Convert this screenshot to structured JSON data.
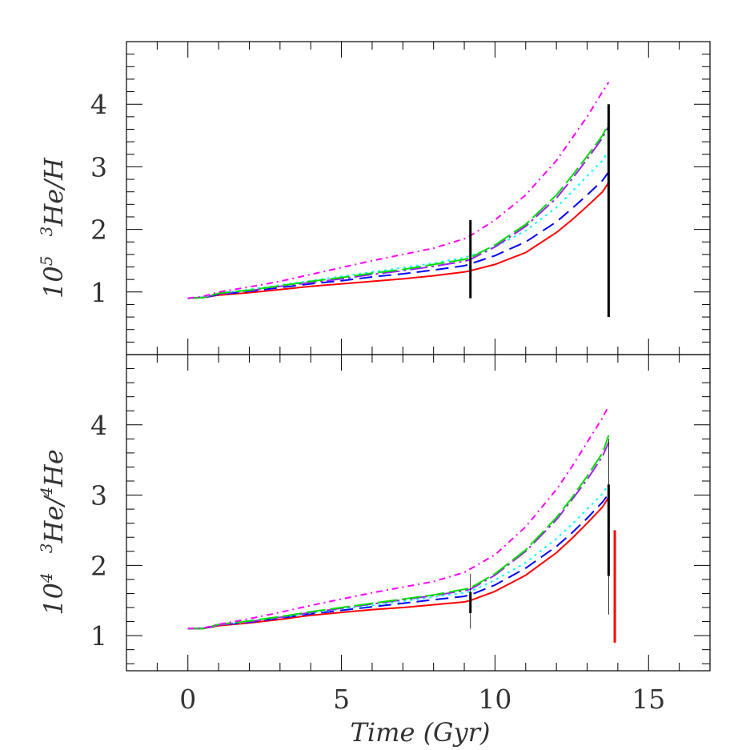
{
  "chart_data": [
    {
      "type": "line",
      "panel": "top",
      "ylabel": "10⁵ ³He/H",
      "ylabel_parts": {
        "base": "10",
        "exp": "5",
        "iso": "3",
        "rest": "He/H"
      },
      "xlim": [
        -2,
        17
      ],
      "ylim": [
        0,
        5
      ],
      "yticks": [
        1,
        2,
        3,
        4
      ],
      "series": [
        {
          "name": "red solid",
          "color": "#ff0000",
          "dash": "",
          "x": [
            0,
            0.5,
            1,
            2,
            3,
            4,
            5,
            6,
            7,
            8,
            9,
            9.2,
            10,
            11,
            12,
            12.5,
            13,
            13.5,
            13.7
          ],
          "y": [
            0.9,
            0.91,
            0.95,
            0.99,
            1.04,
            1.09,
            1.13,
            1.17,
            1.21,
            1.26,
            1.32,
            1.34,
            1.44,
            1.63,
            1.95,
            2.15,
            2.37,
            2.6,
            2.75
          ]
        },
        {
          "name": "blue dashed",
          "color": "#0000ff",
          "dash": "16 8",
          "x": [
            0,
            0.5,
            1,
            2,
            3,
            4,
            5,
            6,
            7,
            8,
            9,
            9.2,
            10,
            11,
            12,
            12.5,
            13,
            13.5,
            13.7
          ],
          "y": [
            0.9,
            0.91,
            0.96,
            1.01,
            1.07,
            1.13,
            1.18,
            1.24,
            1.29,
            1.35,
            1.42,
            1.45,
            1.58,
            1.8,
            2.12,
            2.33,
            2.55,
            2.78,
            2.92
          ]
        },
        {
          "name": "cyan dotted",
          "color": "#00ffff",
          "dash": "3 5",
          "x": [
            0,
            0.5,
            1,
            2,
            3,
            4,
            5,
            6,
            7,
            8,
            9,
            9.2,
            10,
            11,
            12,
            12.5,
            13,
            13.5,
            13.7
          ],
          "y": [
            0.9,
            0.92,
            0.98,
            1.04,
            1.11,
            1.18,
            1.25,
            1.32,
            1.39,
            1.46,
            1.55,
            1.58,
            1.72,
            1.98,
            2.35,
            2.6,
            2.85,
            3.1,
            3.25
          ]
        },
        {
          "name": "purple long-dash-dot",
          "color": "#a020f0",
          "dash": "22 5 3 5",
          "x": [
            0,
            0.5,
            1,
            2,
            3,
            4,
            5,
            6,
            7,
            8,
            9,
            9.2,
            10,
            11,
            12,
            12.5,
            13,
            13.5,
            13.7
          ],
          "y": [
            0.9,
            0.91,
            0.97,
            1.02,
            1.09,
            1.15,
            1.21,
            1.28,
            1.34,
            1.41,
            1.49,
            1.52,
            1.72,
            2.05,
            2.5,
            2.8,
            3.12,
            3.46,
            3.65
          ]
        },
        {
          "name": "green long-dash",
          "color": "#00dd00",
          "dash": "24 6",
          "x": [
            0,
            0.5,
            1,
            2,
            3,
            4,
            5,
            6,
            7,
            8,
            9,
            9.2,
            10,
            11,
            12,
            12.5,
            13,
            13.5,
            13.7
          ],
          "y": [
            0.9,
            0.91,
            0.98,
            1.03,
            1.1,
            1.17,
            1.23,
            1.3,
            1.36,
            1.44,
            1.52,
            1.55,
            1.75,
            2.08,
            2.55,
            2.85,
            3.17,
            3.5,
            3.7
          ]
        },
        {
          "name": "magenta dot-dash",
          "color": "#ff00ff",
          "dash": "8 5 2 5",
          "x": [
            0,
            0.5,
            1,
            2,
            3,
            4,
            5,
            6,
            7,
            8,
            9,
            9.2,
            10,
            11,
            12,
            12.5,
            13,
            13.5,
            13.7
          ],
          "y": [
            0.9,
            0.93,
            1.0,
            1.08,
            1.17,
            1.28,
            1.39,
            1.5,
            1.6,
            1.7,
            1.85,
            1.9,
            2.15,
            2.55,
            3.1,
            3.45,
            3.8,
            4.2,
            4.35
          ]
        }
      ],
      "error_bars": [
        {
          "x": 9.2,
          "y_low": 0.9,
          "y_high": 2.15,
          "color": "#000000",
          "width": 3
        },
        {
          "x": 13.7,
          "y_low": 0.6,
          "y_high": 4.0,
          "color": "#000000",
          "width": 3
        }
      ]
    },
    {
      "type": "line",
      "panel": "bottom",
      "ylabel": "10⁴ ³He/⁴He",
      "ylabel_parts": {
        "base": "10",
        "exp": "4",
        "iso": "3",
        "mid": "He/",
        "iso2": "4",
        "rest": "He"
      },
      "xlabel": "Time (Gyr)",
      "xlim": [
        -2,
        17
      ],
      "ylim": [
        0.5,
        5
      ],
      "yticks": [
        1,
        2,
        3,
        4
      ],
      "xticks": [
        0,
        5,
        10,
        15
      ],
      "series": [
        {
          "name": "red solid",
          "color": "#ff0000",
          "dash": "",
          "x": [
            0,
            0.5,
            1,
            2,
            3,
            4,
            5,
            6,
            7,
            8,
            9,
            9.2,
            10,
            11,
            12,
            12.5,
            13,
            13.5,
            13.7
          ],
          "y": [
            1.1,
            1.1,
            1.14,
            1.18,
            1.23,
            1.29,
            1.33,
            1.37,
            1.4,
            1.44,
            1.48,
            1.5,
            1.63,
            1.86,
            2.18,
            2.38,
            2.6,
            2.83,
            2.97
          ]
        },
        {
          "name": "blue dashed",
          "color": "#0000ff",
          "dash": "16 8",
          "x": [
            0,
            0.5,
            1,
            2,
            3,
            4,
            5,
            6,
            7,
            8,
            9,
            9.2,
            10,
            11,
            12,
            12.5,
            13,
            13.5,
            13.7
          ],
          "y": [
            1.1,
            1.1,
            1.15,
            1.19,
            1.25,
            1.31,
            1.36,
            1.41,
            1.46,
            1.51,
            1.56,
            1.58,
            1.72,
            1.96,
            2.27,
            2.46,
            2.67,
            2.9,
            3.02
          ]
        },
        {
          "name": "cyan dotted",
          "color": "#00ffff",
          "dash": "3 5",
          "x": [
            0,
            0.5,
            1,
            2,
            3,
            4,
            5,
            6,
            7,
            8,
            9,
            9.2,
            10,
            11,
            12,
            12.5,
            13,
            13.5,
            13.7
          ],
          "y": [
            1.1,
            1.11,
            1.15,
            1.2,
            1.26,
            1.32,
            1.38,
            1.43,
            1.49,
            1.55,
            1.61,
            1.63,
            1.79,
            2.04,
            2.38,
            2.58,
            2.8,
            3.02,
            3.15
          ]
        },
        {
          "name": "purple long-dash-dot",
          "color": "#a020f0",
          "dash": "22 5 3 5",
          "x": [
            0,
            0.5,
            1,
            2,
            3,
            4,
            5,
            6,
            7,
            8,
            9,
            9.2,
            10,
            11,
            12,
            12.5,
            13,
            13.5,
            13.7
          ],
          "y": [
            1.1,
            1.1,
            1.15,
            1.2,
            1.26,
            1.33,
            1.39,
            1.45,
            1.51,
            1.57,
            1.64,
            1.66,
            1.86,
            2.2,
            2.65,
            2.93,
            3.22,
            3.55,
            3.75
          ]
        },
        {
          "name": "green long-dash",
          "color": "#00dd00",
          "dash": "24 6",
          "x": [
            0,
            0.5,
            1,
            2,
            3,
            4,
            5,
            6,
            7,
            8,
            9,
            9.2,
            10,
            11,
            12,
            12.5,
            13,
            13.5,
            13.7
          ],
          "y": [
            1.1,
            1.1,
            1.16,
            1.21,
            1.27,
            1.34,
            1.4,
            1.46,
            1.52,
            1.58,
            1.66,
            1.68,
            1.88,
            2.22,
            2.68,
            2.96,
            3.27,
            3.6,
            3.85
          ]
        },
        {
          "name": "magenta dot-dash",
          "color": "#ff00ff",
          "dash": "8 5 2 5",
          "x": [
            0,
            0.5,
            1,
            2,
            3,
            4,
            5,
            6,
            7,
            8,
            9,
            9.2,
            10,
            11,
            12,
            12.5,
            13,
            13.5,
            13.7
          ],
          "y": [
            1.1,
            1.11,
            1.16,
            1.24,
            1.33,
            1.43,
            1.52,
            1.61,
            1.69,
            1.77,
            1.9,
            1.95,
            2.15,
            2.55,
            3.08,
            3.4,
            3.75,
            4.1,
            4.27
          ]
        }
      ],
      "error_bars": [
        {
          "x": 9.2,
          "y_low": 1.1,
          "y_high": 1.88,
          "color": "#000000",
          "width": 0.8
        },
        {
          "x": 9.2,
          "y_low": 1.32,
          "y_high": 1.62,
          "color": "#000000",
          "width": 3
        },
        {
          "x": 13.7,
          "y_low": 1.3,
          "y_high": 3.8,
          "color": "#000000",
          "width": 0.8
        },
        {
          "x": 13.7,
          "y_low": 1.85,
          "y_high": 3.15,
          "color": "#000000",
          "width": 3
        },
        {
          "x": 13.9,
          "y_low": 0.9,
          "y_high": 2.5,
          "color": "#ff0000",
          "width": 3
        }
      ]
    }
  ]
}
